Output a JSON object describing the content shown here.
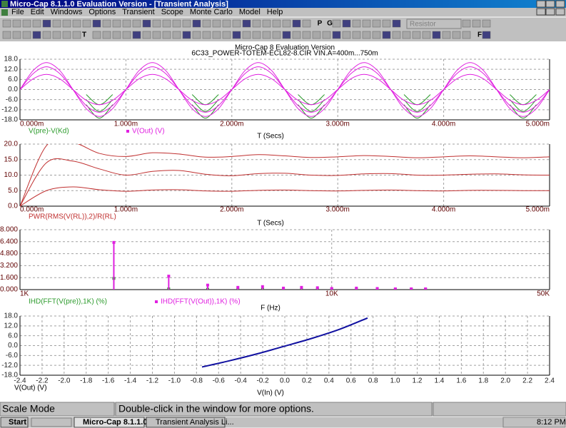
{
  "window": {
    "title": "Micro-Cap 8.1.1.0 Evaluation Version - [Transient Analysis]",
    "menu": [
      "File",
      "Edit",
      "Windows",
      "Options",
      "Transient",
      "Scope",
      "Monte Carlo",
      "Model",
      "Help"
    ],
    "toolbar": {
      "text_buttons": [
        "T",
        "P",
        "G",
        "F"
      ],
      "combo": "Resistor"
    }
  },
  "chart_data": [
    {
      "type": "line",
      "title": "Micro-Cap 8 Evaluation Version",
      "subtitle": "6C33_POWER-TOTEM-ECL82-8.CIR VIN.A=400m...750m",
      "xlabel": "T (Secs)",
      "x": [
        0,
        0.000125,
        0.00025,
        0.000375,
        0.0005,
        0.000625,
        0.00075,
        0.000875,
        0.001,
        0.001125,
        0.00125,
        0.001375,
        0.0015,
        0.001625,
        0.00175,
        0.001875,
        0.002,
        0.002125,
        0.00225,
        0.002375,
        0.0025,
        0.002625,
        0.00275,
        0.002875,
        0.003,
        0.003125,
        0.00325,
        0.003375,
        0.0035,
        0.003625,
        0.00375,
        0.003875,
        0.004,
        0.004125,
        0.00425,
        0.004375,
        0.0045,
        0.004625,
        0.00475,
        0.004875,
        0.005
      ],
      "series": [
        {
          "name": "V(pre)-V(Kd)",
          "color": "#2a9a2a",
          "values": [
            null,
            null,
            null,
            null,
            null,
            -9,
            -17,
            -9,
            null,
            null,
            null,
            null,
            null,
            -9,
            -17,
            -9,
            null,
            null,
            null,
            null,
            null,
            -9,
            -17,
            -9,
            null,
            null,
            null,
            null,
            null,
            -9,
            -17,
            -9,
            null,
            null,
            null,
            null,
            null,
            -9,
            -17,
            -9,
            null
          ]
        },
        {
          "color": "#2a9a2a",
          "values": [
            null,
            null,
            null,
            null,
            null,
            -6,
            -13,
            -6,
            null,
            null,
            null,
            null,
            null,
            -6,
            -13,
            -6,
            null,
            null,
            null,
            null,
            null,
            -6,
            -13,
            -6,
            null,
            null,
            null,
            null,
            null,
            -6,
            -13,
            -6,
            null,
            null,
            null,
            null,
            null,
            -6,
            -13,
            -6,
            null
          ]
        },
        {
          "color": "#2a9a2a",
          "values": [
            null,
            null,
            null,
            null,
            null,
            -3,
            -9,
            -3,
            null,
            null,
            null,
            null,
            null,
            -3,
            -9,
            -3,
            null,
            null,
            null,
            null,
            null,
            -3,
            -9,
            -3,
            null,
            null,
            null,
            null,
            null,
            -3,
            -9,
            -3,
            null,
            null,
            null,
            null,
            null,
            -3,
            -9,
            -3,
            null
          ]
        },
        {
          "name": "V(Out) (V)",
          "color": "#e020e0",
          "marker": true,
          "values": [
            0,
            11.3,
            16,
            11.3,
            0,
            -11.3,
            -16,
            -11.3,
            0,
            11.3,
            16,
            11.3,
            0,
            -11.3,
            -16,
            -11.3,
            0,
            11.3,
            16,
            11.3,
            0,
            -11.3,
            -16,
            -11.3,
            0,
            11.3,
            16,
            11.3,
            0,
            -11.3,
            -16,
            -11.3,
            0,
            11.3,
            16,
            11.3,
            0,
            -11.3,
            -16,
            -11.3,
            0
          ]
        },
        {
          "color": "#e020e0",
          "values": [
            0,
            9.5,
            13.5,
            9.5,
            0,
            -9.5,
            -13.5,
            -9.5,
            0,
            9.5,
            13.5,
            9.5,
            0,
            -9.5,
            -13.5,
            -9.5,
            0,
            9.5,
            13.5,
            9.5,
            0,
            -9.5,
            -13.5,
            -9.5,
            0,
            9.5,
            13.5,
            9.5,
            0,
            -9.5,
            -13.5,
            -9.5,
            0,
            9.5,
            13.5,
            9.5,
            0,
            -9.5,
            -13.5,
            -9.5,
            0
          ]
        },
        {
          "color": "#e020e0",
          "values": [
            0,
            6.4,
            9,
            6.4,
            0,
            -6.4,
            -9,
            -6.4,
            0,
            6.4,
            9,
            6.4,
            0,
            -6.4,
            -9,
            -6.4,
            0,
            6.4,
            9,
            6.4,
            0,
            -6.4,
            -9,
            -6.4,
            0,
            6.4,
            9,
            6.4,
            0,
            -6.4,
            -9,
            -6.4,
            0,
            6.4,
            9,
            6.4,
            0,
            -6.4,
            -9,
            -6.4,
            0
          ]
        }
      ],
      "xlim": [
        0,
        0.005
      ],
      "xticks": [
        {
          "value": 0,
          "label": "0.000m"
        },
        {
          "value": 0.001,
          "label": "1.000m"
        },
        {
          "value": 0.002,
          "label": "2.000m"
        },
        {
          "value": 0.003,
          "label": "3.000m"
        },
        {
          "value": 0.004,
          "label": "4.000m"
        },
        {
          "value": 0.005,
          "label": "5.000m"
        }
      ],
      "ylim": [
        -18,
        18
      ],
      "yticks": [
        {
          "value": 18,
          "label": "18.0"
        },
        {
          "value": 12,
          "label": "12.0"
        },
        {
          "value": 6,
          "label": "6.0"
        },
        {
          "value": 0,
          "label": "0.0"
        },
        {
          "value": -6,
          "label": "-6.0"
        },
        {
          "value": -12,
          "label": "-12.0"
        },
        {
          "value": -18,
          "label": "-18.0"
        }
      ],
      "grid": true
    },
    {
      "type": "line",
      "xlabel": "T (Secs)",
      "x": [
        0,
        0.00025,
        0.0005,
        0.00075,
        0.001,
        0.00125,
        0.0015,
        0.00175,
        0.002,
        0.00225,
        0.0025,
        0.00275,
        0.003,
        0.00325,
        0.0035,
        0.00375,
        0.004,
        0.00425,
        0.0045,
        0.00475,
        0.005
      ],
      "series": [
        {
          "name": "PWR(RMS(V(RL)),2)/R(RL)",
          "color": "#c03030",
          "values": [
            0,
            19.5,
            20.5,
            17,
            16,
            17.2,
            16.8,
            15.8,
            16,
            16.6,
            16.2,
            15.7,
            15.9,
            16.3,
            16,
            15.6,
            15.9,
            16.2,
            15.9,
            15.6,
            15.9
          ]
        },
        {
          "color": "#c03030",
          "values": [
            0,
            14,
            14.5,
            12,
            10,
            11.2,
            11.5,
            10.3,
            9.8,
            10.5,
            10.6,
            10,
            9.9,
            10.4,
            10.5,
            10,
            10,
            10.3,
            10.4,
            10.1,
            10
          ]
        },
        {
          "color": "#c03030",
          "values": [
            0,
            5,
            6.2,
            5.3,
            4.8,
            5.2,
            5.3,
            4.9,
            4.8,
            5.1,
            5.2,
            5,
            4.9,
            5.1,
            5.2,
            5,
            4.9,
            5.1,
            5.1,
            5,
            5
          ]
        }
      ],
      "xlim": [
        0,
        0.005
      ],
      "xticks": [
        {
          "value": 0,
          "label": "0.000m"
        },
        {
          "value": 0.001,
          "label": "1.000m"
        },
        {
          "value": 0.002,
          "label": "2.000m"
        },
        {
          "value": 0.003,
          "label": "3.000m"
        },
        {
          "value": 0.004,
          "label": "4.000m"
        },
        {
          "value": 0.005,
          "label": "5.000m"
        }
      ],
      "ylim": [
        0,
        20
      ],
      "yticks": [
        {
          "value": 20,
          "label": "20.0"
        },
        {
          "value": 15,
          "label": "15.0"
        },
        {
          "value": 10,
          "label": "10.0"
        },
        {
          "value": 5,
          "label": "5.0"
        },
        {
          "value": 0,
          "label": "0.0"
        }
      ],
      "grid": true
    },
    {
      "type": "scatter",
      "xlabel": "F (Hz)",
      "log_x": true,
      "x": [
        2000,
        3000,
        4000,
        5000,
        6000,
        7000,
        8000,
        9000,
        10000,
        12000,
        14000,
        16000,
        18000,
        20000
      ],
      "series": [
        {
          "name": "IHD(FFT(V(pre)),1K) (%)",
          "color": "#2a9a2a",
          "values": [
            1.5,
            0.1,
            0.05,
            0.05,
            0.05,
            0.05,
            0.05,
            0.05,
            0.05,
            0.05,
            0.05,
            0.05,
            0.05,
            0.05
          ]
        },
        {
          "name": "IHD(FFT(V(Out)),1K) (%)",
          "color": "#e020e0",
          "marker": true,
          "values": [
            6.3,
            1.8,
            0.6,
            0.3,
            0.4,
            0.2,
            0.3,
            0.25,
            0.15,
            0.2,
            0.15,
            0.1,
            0.1,
            0.1
          ]
        }
      ],
      "xlim": [
        1000,
        50000
      ],
      "xticks": [
        {
          "value": 1000,
          "label": "1K"
        },
        {
          "value": 10000,
          "label": "10K"
        },
        {
          "value": 50000,
          "label": "50K"
        }
      ],
      "ylim": [
        0,
        8
      ],
      "yticks": [
        {
          "value": 8,
          "label": "8.000"
        },
        {
          "value": 6.4,
          "label": "6.400"
        },
        {
          "value": 4.8,
          "label": "4.800"
        },
        {
          "value": 3.2,
          "label": "3.200"
        },
        {
          "value": 1.6,
          "label": "1.600"
        },
        {
          "value": 0,
          "label": "0.000"
        }
      ],
      "grid": true
    },
    {
      "type": "line",
      "xlabel": "V(In) (V)",
      "ylabel": "V(Out) (V)",
      "x": [
        -0.75,
        -0.5,
        -0.25,
        0,
        0.25,
        0.5,
        0.75
      ],
      "series": [
        {
          "color": "#1010a0",
          "values": [
            -13,
            -9.2,
            -5,
            -0.3,
            4.5,
            10,
            16.8
          ]
        }
      ],
      "xlim": [
        -2.4,
        2.4
      ],
      "xticks": [
        -2.4,
        -2.2,
        {
          "value": -2,
          "label": "-2.0"
        },
        -1.8,
        -1.6,
        -1.4,
        -1.2,
        {
          "value": -1,
          "label": "-1.0"
        },
        -0.8,
        -0.6,
        -0.4,
        -0.2,
        {
          "value": 0,
          "label": "0.0"
        },
        0.2,
        0.4,
        0.6,
        0.8,
        {
          "value": 1,
          "label": "1.0"
        },
        1.2,
        1.4,
        1.6,
        1.8,
        {
          "value": 2,
          "label": "2.0"
        },
        2.2,
        2.4
      ],
      "ylim": [
        -18,
        18
      ],
      "yticks": [
        {
          "value": 18,
          "label": "18.0"
        },
        {
          "value": 12,
          "label": "12.0"
        },
        {
          "value": 6,
          "label": "6.0"
        },
        {
          "value": 0,
          "label": "0.0"
        },
        {
          "value": -6,
          "label": "-6.0"
        },
        {
          "value": -12,
          "label": "-12.0"
        },
        {
          "value": -18,
          "label": "-18.0"
        }
      ],
      "grid": true
    }
  ],
  "status_bar": [
    "Scale Mode",
    "Double-click in the window for more options."
  ],
  "taskbar": {
    "start": "Start",
    "tasks": [
      "Micro-Cap 8.1.1.0 ...",
      "Transient Analysis Li..."
    ],
    "clock": "8:12 PM"
  }
}
